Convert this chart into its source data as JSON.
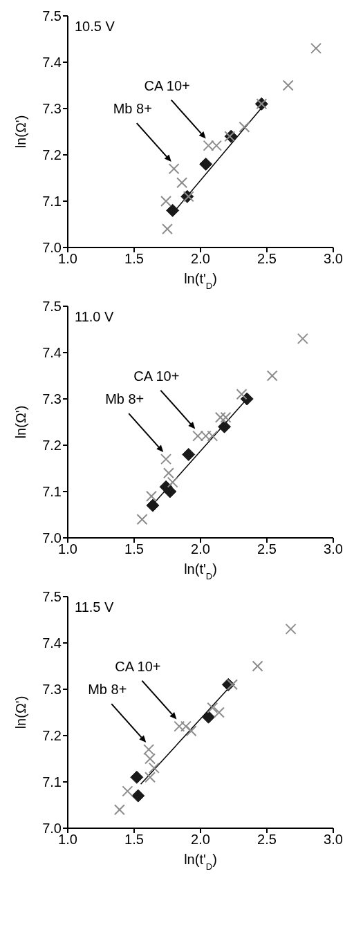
{
  "chart_data": [
    {
      "type": "scatter",
      "title": "10.5 V",
      "xlabel": "ln(t'$_{D}$)",
      "ylabel": "ln(Ω')",
      "xlim": [
        1.0,
        3.0
      ],
      "ylim": [
        7.0,
        7.5
      ],
      "xticks": [
        {
          "value": 1,
          "label": "1.0"
        },
        {
          "value": 1.5,
          "label": "1.5"
        },
        {
          "value": 2,
          "label": "2.0"
        },
        {
          "value": 2.5,
          "label": "2.5"
        },
        {
          "value": 3,
          "label": "3.0"
        }
      ],
      "yticks": [
        {
          "value": 7,
          "label": "7.0"
        },
        {
          "value": 7.1,
          "label": "7.1"
        },
        {
          "value": 7.2,
          "label": "7.2"
        },
        {
          "value": 7.3,
          "label": "7.3"
        },
        {
          "value": 7.4,
          "label": "7.4"
        },
        {
          "value": 7.5,
          "label": "7.5"
        }
      ],
      "series": [
        {
          "marker": "cross",
          "color": "#8c8c8c",
          "x": [
            2.87,
            2.66,
            2.46,
            2.33,
            2.22,
            2.06,
            2.12,
            1.8,
            1.86,
            1.91,
            1.74,
            1.75
          ],
          "values": [
            7.43,
            7.35,
            7.31,
            7.26,
            7.24,
            7.22,
            7.22,
            7.17,
            7.14,
            7.11,
            7.1,
            7.04
          ]
        },
        {
          "marker": "diamond",
          "color": "#1a1a1a",
          "x": [
            2.46,
            2.23,
            2.04,
            1.9,
            1.79
          ],
          "values": [
            7.31,
            7.24,
            7.18,
            7.11,
            7.08
          ]
        },
        {
          "type": "line",
          "marker": "none",
          "color": "#000000",
          "x": [
            1.78,
            2.47
          ],
          "values": [
            7.07,
            7.305
          ]
        }
      ],
      "annotations": [
        "Mb 8+",
        "CA 10+"
      ]
    },
    {
      "type": "scatter",
      "title": "11.0 V",
      "xlabel": "ln(t'$_{D}$)",
      "ylabel": "ln(Ω')",
      "xlim": [
        1.0,
        3.0
      ],
      "ylim": [
        7.0,
        7.5
      ],
      "xticks": [
        {
          "value": 1,
          "label": "1.0"
        },
        {
          "value": 1.5,
          "label": "1.5"
        },
        {
          "value": 2,
          "label": "2.0"
        },
        {
          "value": 2.5,
          "label": "2.5"
        },
        {
          "value": 3,
          "label": "3.0"
        }
      ],
      "yticks": [
        {
          "value": 7,
          "label": "7.0"
        },
        {
          "value": 7.1,
          "label": "7.1"
        },
        {
          "value": 7.2,
          "label": "7.2"
        },
        {
          "value": 7.3,
          "label": "7.3"
        },
        {
          "value": 7.4,
          "label": "7.4"
        },
        {
          "value": 7.5,
          "label": "7.5"
        }
      ],
      "series": [
        {
          "marker": "cross",
          "color": "#8c8c8c",
          "x": [
            2.77,
            2.54,
            2.31,
            2.15,
            2.19,
            1.98,
            2.04,
            2.09,
            1.74,
            1.76,
            1.79,
            1.63,
            1.56
          ],
          "values": [
            7.43,
            7.35,
            7.31,
            7.26,
            7.26,
            7.22,
            7.22,
            7.22,
            7.17,
            7.14,
            7.12,
            7.09,
            7.04
          ]
        },
        {
          "marker": "diamond",
          "color": "#1a1a1a",
          "x": [
            2.35,
            2.18,
            1.91,
            1.74,
            1.77,
            1.64
          ],
          "values": [
            7.3,
            7.24,
            7.18,
            7.11,
            7.1,
            7.07
          ]
        },
        {
          "type": "line",
          "marker": "none",
          "color": "#000000",
          "x": [
            1.65,
            2.35
          ],
          "values": [
            7.075,
            7.3
          ]
        }
      ],
      "annotations": [
        "Mb 8+",
        "CA 10+"
      ]
    },
    {
      "type": "scatter",
      "title": "11.5 V",
      "xlabel": "ln(t'$_{D}$)",
      "ylabel": "ln(Ω')",
      "xlim": [
        1.0,
        3.0
      ],
      "ylim": [
        7.0,
        7.5
      ],
      "xticks": [
        {
          "value": 1,
          "label": "1.0"
        },
        {
          "value": 1.5,
          "label": "1.5"
        },
        {
          "value": 2,
          "label": "2.0"
        },
        {
          "value": 2.5,
          "label": "2.5"
        },
        {
          "value": 3,
          "label": "3.0"
        }
      ],
      "yticks": [
        {
          "value": 7,
          "label": "7.0"
        },
        {
          "value": 7.1,
          "label": "7.1"
        },
        {
          "value": 7.2,
          "label": "7.2"
        },
        {
          "value": 7.3,
          "label": "7.3"
        },
        {
          "value": 7.4,
          "label": "7.4"
        },
        {
          "value": 7.5,
          "label": "7.5"
        }
      ],
      "series": [
        {
          "marker": "cross",
          "color": "#8c8c8c",
          "x": [
            2.68,
            2.43,
            2.24,
            2.09,
            2.14,
            1.84,
            1.89,
            1.93,
            1.61,
            1.62,
            1.65,
            1.62,
            1.45,
            1.39
          ],
          "values": [
            7.43,
            7.35,
            7.31,
            7.26,
            7.25,
            7.22,
            7.22,
            7.21,
            7.17,
            7.15,
            7.13,
            7.11,
            7.08,
            7.04
          ]
        },
        {
          "marker": "diamond",
          "color": "#1a1a1a",
          "x": [
            2.21,
            2.06,
            1.52,
            1.53
          ],
          "values": [
            7.31,
            7.24,
            7.11,
            7.07
          ]
        },
        {
          "type": "line",
          "marker": "none",
          "color": "#000000",
          "x": [
            1.55,
            2.22
          ],
          "values": [
            7.095,
            7.305
          ]
        }
      ],
      "annotations": [
        "Mb 8+",
        "CA 10+"
      ]
    }
  ]
}
